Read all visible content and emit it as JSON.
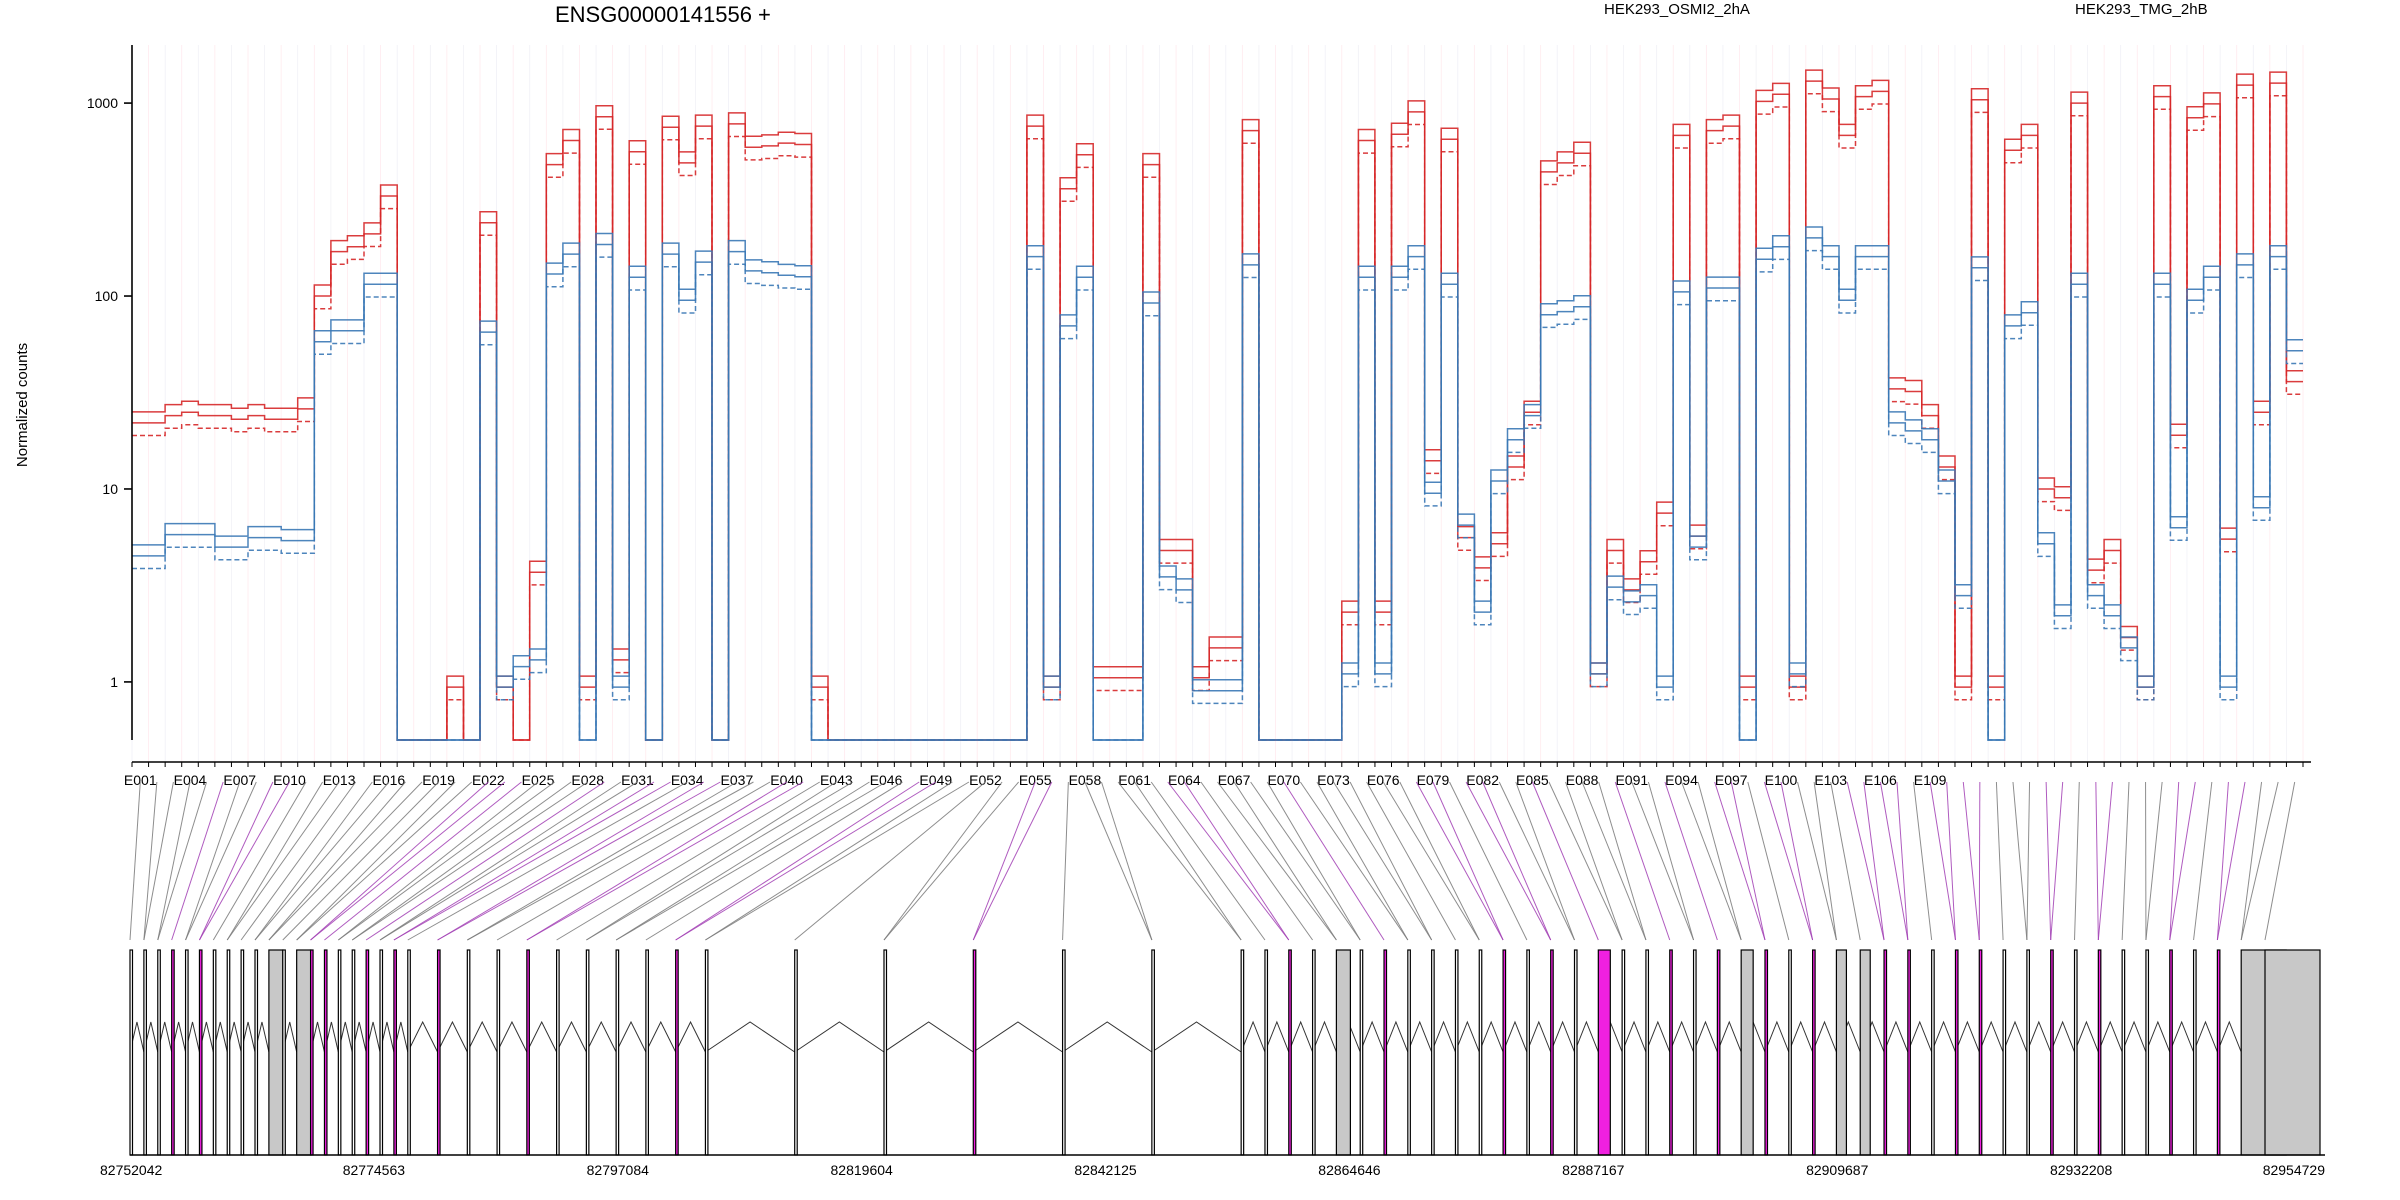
{
  "chart_data": {
    "type": "line",
    "title": "ENSG00000141556 +",
    "ylabel": "Normalized counts",
    "yscale": "log",
    "yticks": [
      1,
      10,
      100,
      1000
    ],
    "ytick_labels": [
      "1",
      "10",
      "100",
      "1000"
    ],
    "ylim": [
      0.5,
      2000
    ],
    "legend": [
      {
        "name": "HEK293_OSMI2_2hA",
        "color": "#d62728"
      },
      {
        "name": "HEK293_TMG_2hB",
        "color": "#3a78b5"
      }
    ],
    "x_tick_labels": [
      "E001",
      "E004",
      "E007",
      "E010",
      "E013",
      "E016",
      "E019",
      "E022",
      "E025",
      "E028",
      "E031",
      "E034",
      "E037",
      "E040",
      "E043",
      "E046",
      "E049",
      "E052",
      "E055",
      "E058",
      "E061",
      "E064",
      "E067",
      "E070",
      "E073",
      "E076",
      "E079",
      "E082",
      "E085",
      "E088",
      "E091",
      "E094",
      "E097",
      "E100",
      "E103",
      "E106",
      "E109"
    ],
    "genomic_tick_labels": [
      "82752042",
      "82774563",
      "82797084",
      "82819604",
      "82842125",
      "82864646",
      "82887167",
      "82909687",
      "82932208",
      "82954729"
    ],
    "genomic_range": [
      82752042,
      82954729
    ],
    "group_means": {
      "HEK293_OSMI2_2hA": [
        22,
        22,
        24,
        25,
        24,
        24,
        23,
        24,
        23,
        23,
        26,
        100,
        170,
        180,
        210,
        330,
        0.5,
        0.5,
        0.5,
        0.94,
        0.5,
        240,
        0.94,
        0.5,
        3.7,
        480,
        640,
        0.94,
        850,
        1.3,
        560,
        0.5,
        750,
        490,
        760,
        0.5,
        780,
        590,
        600,
        620,
        610,
        0.94,
        0.5,
        0.5,
        0.5,
        0.5,
        0.5,
        0.5,
        0.5,
        0.5,
        0.5,
        0.5,
        0.5,
        0.5,
        760,
        0.94,
        360,
        540,
        1.05,
        1.05,
        1.05,
        480,
        4.8,
        4.8,
        1.05,
        1.5,
        1.5,
        720,
        0.5,
        0.5,
        0.5,
        0.5,
        0.5,
        2.3,
        640,
        2.3,
        690,
        900,
        14,
        650,
        5.6,
        3.9,
        5.2,
        13,
        25,
        440,
        490,
        550,
        1.1,
        4.8,
        3.0,
        4.2,
        7.5,
        680,
        5.7,
        720,
        760,
        0.94,
        1020,
        1110,
        0.94,
        1300,
        1050,
        680,
        1080,
        1150,
        33,
        32,
        24,
        13,
        0.94,
        1040,
        0.94,
        570,
        680,
        10,
        9.0,
        1000,
        3.8,
        4.8,
        1.7,
        0.94,
        1080,
        19,
        840,
        990,
        5.5,
        1240,
        25,
        1270,
        36
      ],
      "HEK293_TMG_2hB": [
        4.5,
        4.5,
        5.8,
        5.8,
        5.8,
        5.0,
        5.0,
        5.6,
        5.6,
        5.4,
        5.4,
        58,
        66,
        66,
        115,
        115,
        0.5,
        0.5,
        0.5,
        0.5,
        0.5,
        65,
        0.94,
        1.2,
        1.3,
        130,
        165,
        0.5,
        185,
        0.94,
        125,
        0.5,
        165,
        95,
        150,
        0.5,
        170,
        135,
        132,
        128,
        126,
        0.5,
        0.5,
        0.5,
        0.5,
        0.5,
        0.5,
        0.5,
        0.5,
        0.5,
        0.5,
        0.5,
        0.5,
        0.5,
        160,
        0.94,
        70,
        125,
        0.5,
        0.5,
        0.5,
        92,
        3.5,
        3.0,
        0.9,
        0.9,
        0.9,
        145,
        0.5,
        0.5,
        0.5,
        0.5,
        0.5,
        1.1,
        125,
        1.1,
        125,
        160,
        9.5,
        115,
        6.5,
        2.3,
        11,
        18,
        24,
        80,
        83,
        88,
        1.1,
        3.1,
        2.6,
        2.8,
        0.94,
        105,
        5.0,
        110,
        110,
        0.5,
        155,
        180,
        1.1,
        200,
        160,
        95,
        160,
        160,
        22,
        20,
        18,
        11,
        2.8,
        140,
        0.5,
        70,
        82,
        5.2,
        2.2,
        115,
        2.8,
        2.2,
        1.5,
        0.94,
        115,
        6.3,
        95,
        125,
        0.94,
        145,
        8.0,
        160,
        52
      ]
    },
    "gene_model": {
      "exon_highlight_color": "#f020e0",
      "exon_neutral_color": "#c8c8c8",
      "connector_highlight_color": "#a23fb4",
      "connector_neutral_color": "#7a7a7a"
    }
  }
}
